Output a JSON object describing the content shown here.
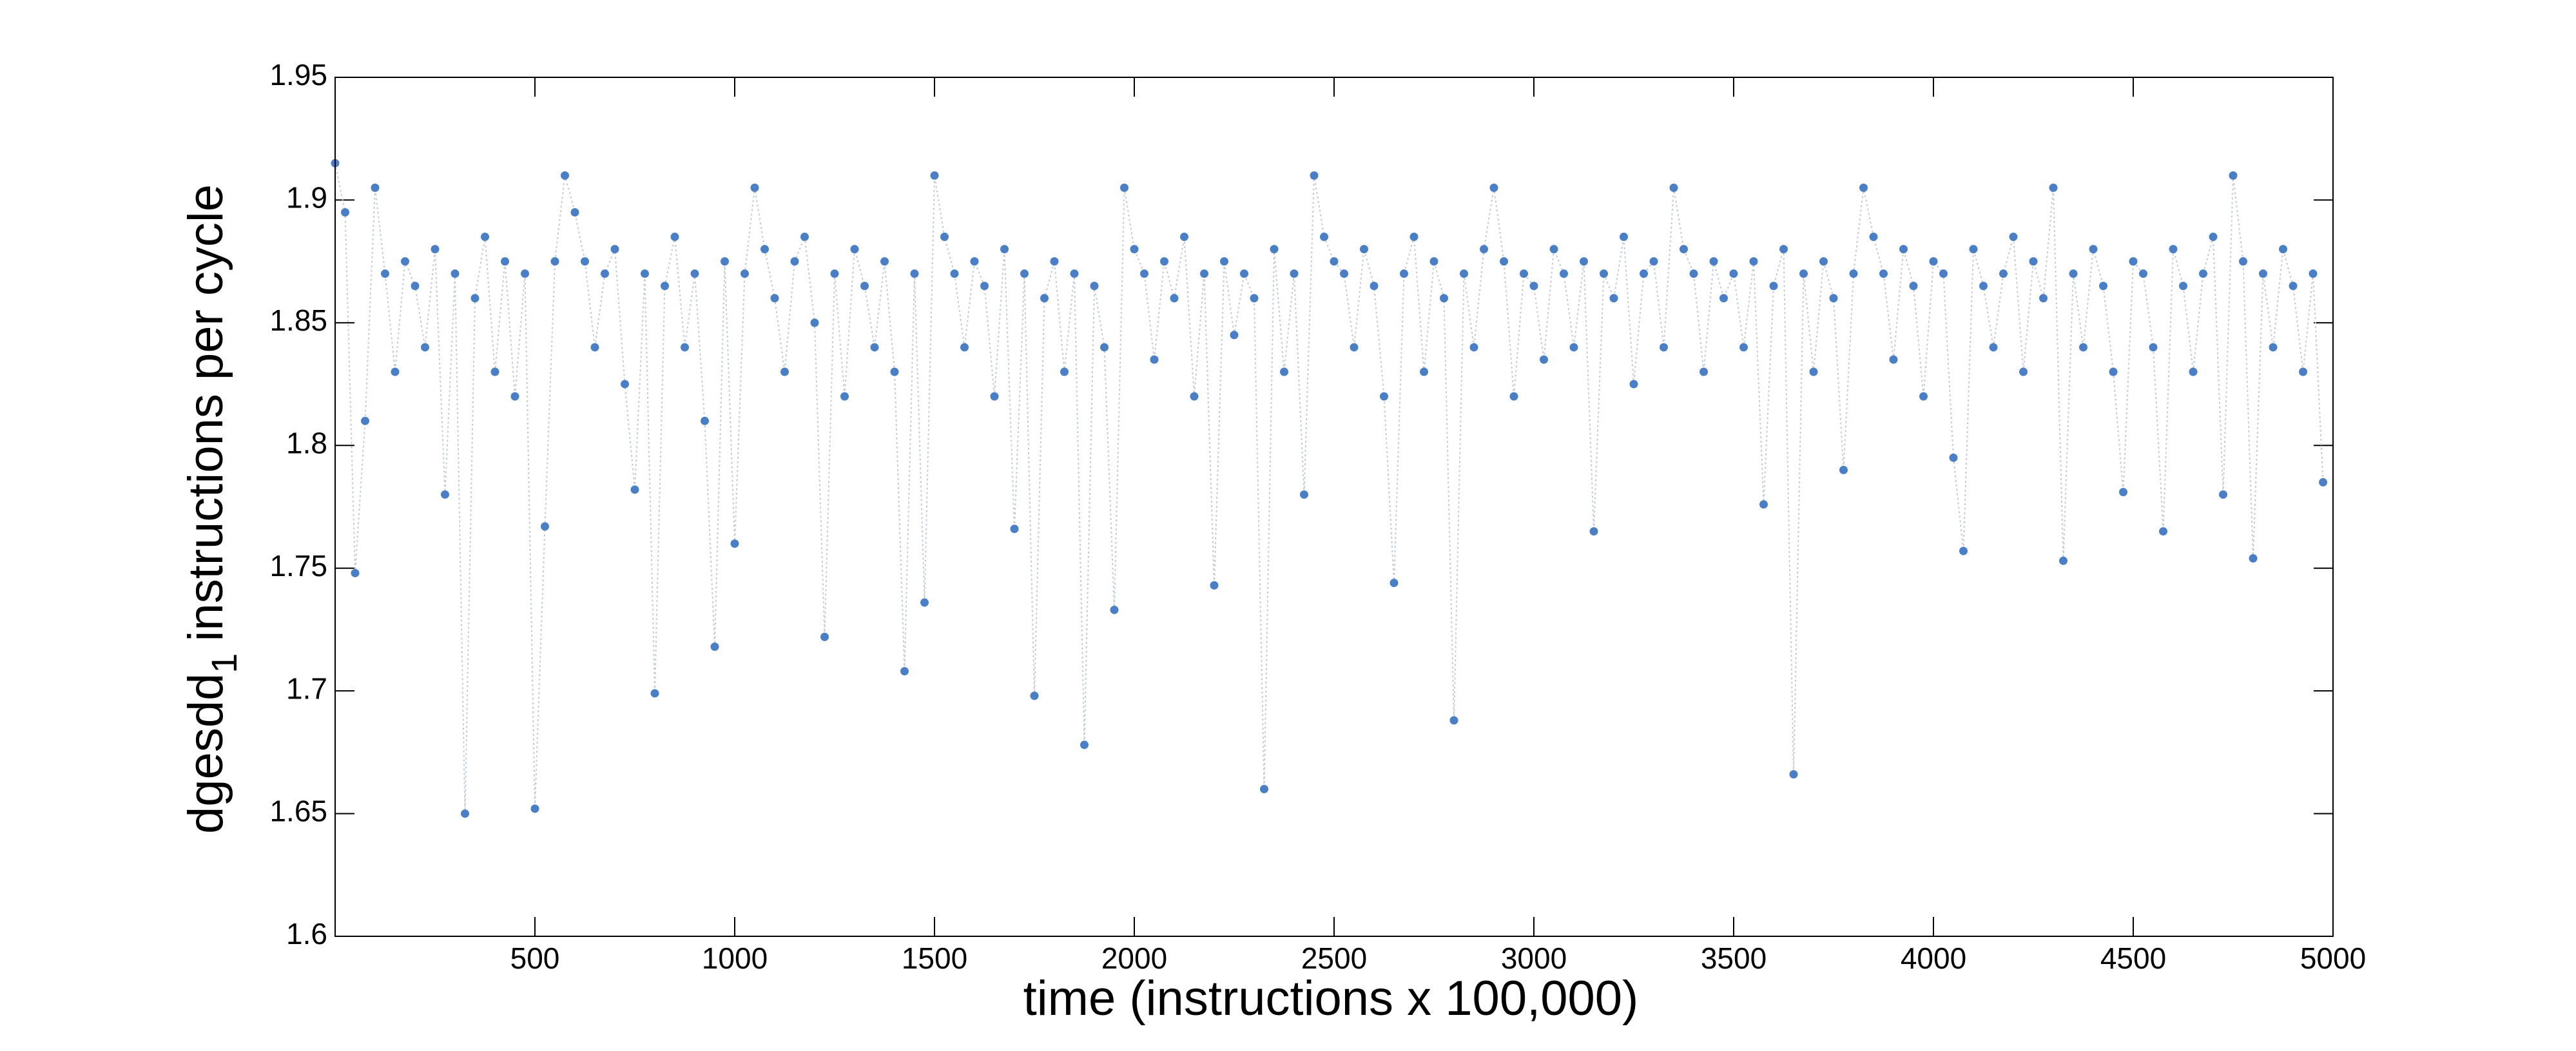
{
  "chart_data": {
    "type": "scatter",
    "xlabel": "time (instructions x 100,000)",
    "ylabel": {
      "text": "dgesdd",
      "subscript": "1",
      "rest": "instructions per cycle"
    },
    "color": "#4a7fc6",
    "line_color": "#c3c9d3",
    "grid": false,
    "xlim": [
      0,
      5000
    ],
    "xticks": [
      500,
      1000,
      1500,
      2000,
      2500,
      3000,
      3500,
      4000,
      4500,
      5000
    ],
    "ylim": [
      1.6,
      1.95
    ],
    "yticks": [
      1.6,
      1.65,
      1.7,
      1.75,
      1.8,
      1.85,
      1.9,
      1.95
    ],
    "x": [
      0,
      25,
      50,
      75,
      100,
      125,
      150,
      175,
      200,
      225,
      250,
      275,
      300,
      325,
      350,
      375,
      400,
      425,
      450,
      475,
      500,
      525,
      550,
      575,
      600,
      625,
      650,
      675,
      700,
      725,
      750,
      775,
      800,
      825,
      850,
      875,
      900,
      925,
      950,
      975,
      1000,
      1025,
      1050,
      1075,
      1100,
      1125,
      1150,
      1175,
      1200,
      1225,
      1250,
      1275,
      1300,
      1325,
      1350,
      1375,
      1400,
      1425,
      1450,
      1475,
      1500,
      1525,
      1550,
      1575,
      1600,
      1625,
      1650,
      1675,
      1700,
      1725,
      1750,
      1775,
      1800,
      1825,
      1850,
      1875,
      1900,
      1925,
      1950,
      1975,
      2000,
      2025,
      2050,
      2075,
      2100,
      2125,
      2150,
      2175,
      2200,
      2225,
      2250,
      2275,
      2300,
      2325,
      2350,
      2375,
      2400,
      2425,
      2450,
      2475,
      2500,
      2525,
      2550,
      2575,
      2600,
      2625,
      2650,
      2675,
      2700,
      2725,
      2750,
      2775,
      2800,
      2825,
      2850,
      2875,
      2900,
      2925,
      2950,
      2975,
      3000,
      3025,
      3050,
      3075,
      3100,
      3125,
      3150,
      3175,
      3200,
      3225,
      3250,
      3275,
      3300,
      3325,
      3350,
      3375,
      3400,
      3425,
      3450,
      3475,
      3500,
      3525,
      3550,
      3575,
      3600,
      3625,
      3650,
      3675,
      3700,
      3725,
      3750,
      3775,
      3800,
      3825,
      3850,
      3875,
      3900,
      3925,
      3950,
      3975,
      4000,
      4025,
      4050,
      4075,
      4100,
      4125,
      4150,
      4175,
      4200,
      4225,
      4250,
      4275,
      4300,
      4325,
      4350,
      4375,
      4400,
      4425,
      4450,
      4475,
      4500,
      4525,
      4550,
      4575,
      4600,
      4625,
      4650,
      4675,
      4700,
      4725,
      4750,
      4775,
      4800,
      4825,
      4850,
      4875,
      4900,
      4925,
      4950,
      4975
    ],
    "values": [
      1.915,
      1.895,
      1.748,
      1.81,
      1.905,
      1.87,
      1.83,
      1.875,
      1.865,
      1.84,
      1.88,
      1.78,
      1.87,
      1.65,
      1.86,
      1.885,
      1.83,
      1.875,
      1.82,
      1.87,
      1.652,
      1.767,
      1.875,
      1.91,
      1.895,
      1.875,
      1.84,
      1.87,
      1.88,
      1.825,
      1.782,
      1.87,
      1.699,
      1.865,
      1.885,
      1.84,
      1.87,
      1.81,
      1.718,
      1.875,
      1.76,
      1.87,
      1.905,
      1.88,
      1.86,
      1.83,
      1.875,
      1.885,
      1.85,
      1.722,
      1.87,
      1.82,
      1.88,
      1.865,
      1.84,
      1.875,
      1.83,
      1.708,
      1.87,
      1.736,
      1.91,
      1.885,
      1.87,
      1.84,
      1.875,
      1.865,
      1.82,
      1.88,
      1.766,
      1.87,
      1.698,
      1.86,
      1.875,
      1.83,
      1.87,
      1.678,
      1.865,
      1.84,
      1.733,
      1.905,
      1.88,
      1.87,
      1.835,
      1.875,
      1.86,
      1.885,
      1.82,
      1.87,
      1.743,
      1.875,
      1.845,
      1.87,
      1.86,
      1.66,
      1.88,
      1.83,
      1.87,
      1.78,
      1.91,
      1.885,
      1.875,
      1.87,
      1.84,
      1.88,
      1.865,
      1.82,
      1.744,
      1.87,
      1.885,
      1.83,
      1.875,
      1.86,
      1.688,
      1.87,
      1.84,
      1.88,
      1.905,
      1.875,
      1.82,
      1.87,
      1.865,
      1.835,
      1.88,
      1.87,
      1.84,
      1.875,
      1.765,
      1.87,
      1.86,
      1.885,
      1.825,
      1.87,
      1.875,
      1.84,
      1.905,
      1.88,
      1.87,
      1.83,
      1.875,
      1.86,
      1.87,
      1.84,
      1.875,
      1.776,
      1.865,
      1.88,
      1.666,
      1.87,
      1.83,
      1.875,
      1.86,
      1.79,
      1.87,
      1.905,
      1.885,
      1.87,
      1.835,
      1.88,
      1.865,
      1.82,
      1.875,
      1.87,
      1.795,
      1.757,
      1.88,
      1.865,
      1.84,
      1.87,
      1.885,
      1.83,
      1.875,
      1.86,
      1.905,
      1.753,
      1.87,
      1.84,
      1.88,
      1.865,
      1.83,
      1.781,
      1.875,
      1.87,
      1.84,
      1.765,
      1.88,
      1.865,
      1.83,
      1.87,
      1.885,
      1.78,
      1.91,
      1.875,
      1.754,
      1.87,
      1.84,
      1.88,
      1.865,
      1.83,
      1.87,
      1.785
    ]
  }
}
